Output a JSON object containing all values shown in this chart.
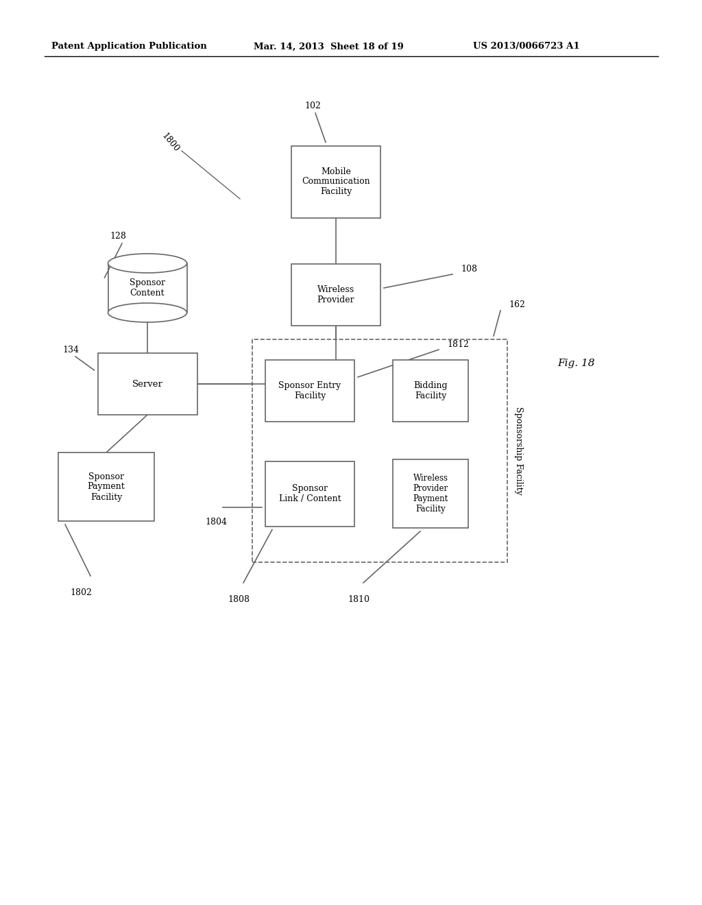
{
  "background_color": "#ffffff",
  "header_left": "Patent Application Publication",
  "header_mid": "Mar. 14, 2013  Sheet 18 of 19",
  "header_right": "US 2013/0066723 A1",
  "fig_label": "Fig. 18",
  "diagram_label": "1800"
}
